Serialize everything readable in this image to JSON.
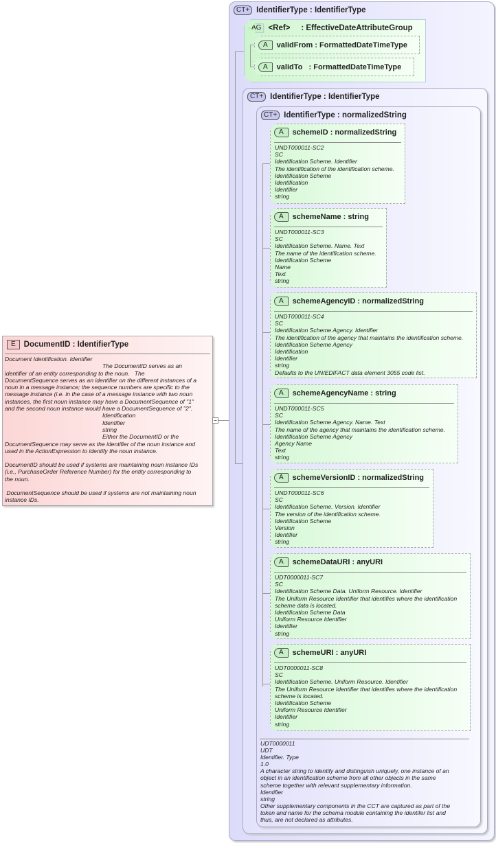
{
  "element": {
    "badge": "E",
    "title": "DocumentID : IdentifierType",
    "doc": [
      "Document Identification. Identifier",
      "The DocumentID serves as an",
      "identifier of an entity corresponding to the noun.   The",
      "DocumentSequence serves as an identifier on the different instances of a",
      "noun in a message instance; the sequence numbers are specific to the",
      "message instance (i.e. in the case of a message instance with two noun",
      "instances, the first noun instance may have a DocumentSequence of \"1\"",
      "and the second noun instance would have a DocumentSequence of \"2\".",
      "Identification",
      "Identifier",
      "string",
      "Either the DocumentID or the",
      "DocumentSequence may serve as the identifier of the noun instance and",
      "used in the ActionExpression to identify the noun instance.",
      "",
      "DocumentID should be used if systems are maintaining noun instance IDs",
      "(i.e., PurchaseOrder Reference Number) for the entity corresponding to",
      "the noun.",
      "",
      " DocumentSequence should be used if systems are not maintaining noun",
      "instance IDs."
    ]
  },
  "outer_ct": {
    "badge": "CT+",
    "title": "IdentifierType : IdentifierType"
  },
  "attribute_group": {
    "badge": "AG",
    "title": "<Ref>     : EffectiveDateAttributeGroup",
    "attributes": [
      {
        "badge": "A",
        "title": "validFrom : FormattedDateTimeType"
      },
      {
        "badge": "A",
        "title": "validTo   : FormattedDateTimeType"
      }
    ]
  },
  "inner_ct": {
    "badge": "CT+",
    "title": "IdentifierType : IdentifierType"
  },
  "base_ct": {
    "badge": "CT+",
    "title": "IdentifierType : normalizedString",
    "attributes": [
      {
        "badge": "A",
        "title": "schemeID : normalizedString",
        "doc": [
          "UNDT000011-SC2",
          "SC",
          "Identification Scheme. Identifier",
          "The identification of the identification scheme.",
          "Identification Scheme",
          "Identification",
          "Identifier",
          "string"
        ]
      },
      {
        "badge": "A",
        "title": "schemeName : string",
        "doc": [
          "UNDT000011-SC3",
          "SC",
          "Identification Scheme. Name. Text",
          "The name of the identification scheme.",
          "Identification Scheme",
          "Name",
          "Text",
          "string"
        ]
      },
      {
        "badge": "A",
        "title": "schemeAgencyID : normalizedString",
        "doc": [
          "UNDT000011-SC4",
          "SC",
          "Identification Scheme Agency. Identifier",
          "The identification of the agency that maintains the identification scheme.",
          "Identification Scheme Agency",
          "Identification",
          "Identifier",
          "string",
          "Defaults to the UN/EDIFACT data element 3055 code list."
        ]
      },
      {
        "badge": "A",
        "title": "schemeAgencyName : string",
        "doc": [
          "UNDT000011-SC5",
          "SC",
          "Identification Scheme Agency. Name. Text",
          "The name of the agency that maintains the identification scheme.",
          "Identification Scheme Agency",
          "Agency Name",
          "Text",
          "string"
        ]
      },
      {
        "badge": "A",
        "title": "schemeVersionID : normalizedString",
        "doc": [
          "UNDT000011-SC6",
          "SC",
          "Identification Scheme. Version. Identifier",
          "The version of the identification scheme.",
          "Identification Scheme",
          "Version",
          "Identifier",
          "string"
        ]
      },
      {
        "badge": "A",
        "title": "schemeDataURI : anyURI",
        "doc": [
          "UDT0000011-SC7",
          "SC",
          "Identification Scheme Data. Uniform Resource. Identifier",
          "The Uniform Resource Identifier that identifies where the identification",
          "scheme data is located.",
          "Identification Scheme Data",
          "Uniform Resource Identifier",
          "Identifier",
          "string"
        ]
      },
      {
        "badge": "A",
        "title": "schemeURI : anyURI",
        "doc": [
          "UDT0000011-SC8",
          "SC",
          "Identification Scheme. Uniform Resource. Identifier",
          "The Uniform Resource Identifier that identifies where the identification",
          "scheme is located.",
          "Identification Scheme",
          "Uniform Resource Identifier",
          "Identifier",
          "string"
        ]
      }
    ],
    "doc": [
      "UDT0000011",
      "UDT",
      "Identifier. Type",
      "1.0",
      "A character string to identify and distinguish uniquely, one instance of an",
      "object in an identification scheme from all other objects in the same",
      "scheme together with relevant supplementary information.",
      "Identifier",
      "string",
      "Other supplementary components in the CCT are captured as part of the",
      "token and name for the schema module containing the identifer list and",
      "thus, are not declared as attributes."
    ]
  }
}
